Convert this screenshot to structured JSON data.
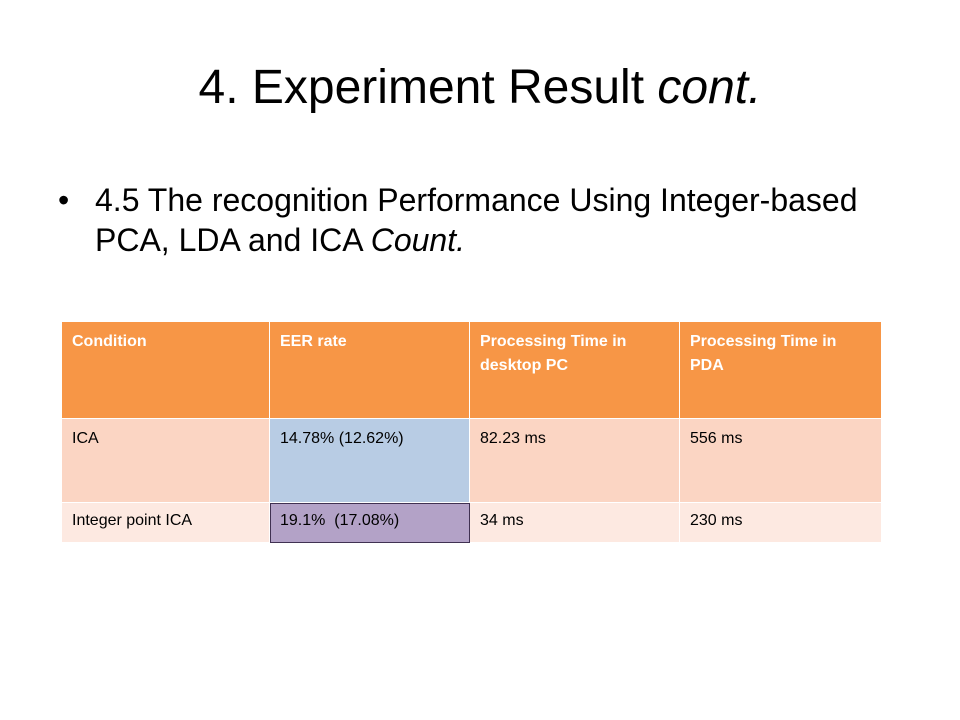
{
  "title": {
    "main": "4. Experiment Result ",
    "italic": "cont."
  },
  "bullet": {
    "glyph": "•",
    "text": "4.5 The recognition Performance Using Integer-based PCA, LDA and ICA ",
    "italic": "Count."
  },
  "table": {
    "headers": [
      "Condition",
      "EER rate",
      "Processing Time in desktop PC",
      "Processing Time in PDA"
    ],
    "rows": [
      [
        "ICA",
        "14.78% (12.62%)",
        "82.23 ms",
        "556 ms"
      ],
      [
        "Integer point ICA",
        "19.1%  (17.08%)",
        "34 ms",
        "230 ms"
      ]
    ]
  },
  "colors": {
    "header": "#f79646",
    "row_odd": "#fbd5c3",
    "row_even": "#fde9e1",
    "highlight_blue": "#b8cce4",
    "highlight_purple": "#b3a2c7"
  }
}
